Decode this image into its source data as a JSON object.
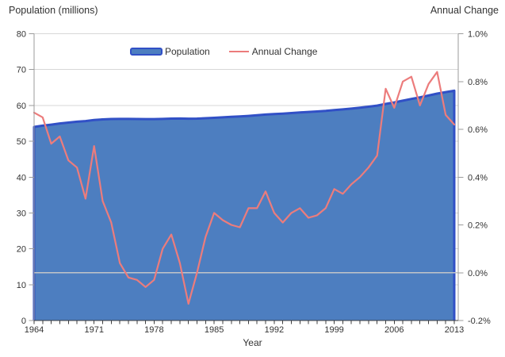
{
  "titles": {
    "left_axis_title": "Population (millions)",
    "right_axis_title": "Annual Change",
    "x_axis_title": "Year"
  },
  "colors": {
    "area_fill": "#4d7ec0",
    "area_border": "#3150c6",
    "line": "#ec7c7c",
    "gridline": "#d7d7d7",
    "zero_line": "#c2c5c8",
    "side_axis": "#9b9b9b",
    "bottom_axis": "#3f3f3f",
    "text": "#333333"
  },
  "chart_data": {
    "type": "combo",
    "x_label": "Year",
    "years": [
      1964,
      1965,
      1966,
      1967,
      1968,
      1969,
      1970,
      1971,
      1972,
      1973,
      1974,
      1975,
      1976,
      1977,
      1978,
      1979,
      1980,
      1981,
      1982,
      1983,
      1984,
      1985,
      1986,
      1987,
      1988,
      1989,
      1990,
      1991,
      1992,
      1993,
      1994,
      1995,
      1996,
      1997,
      1998,
      1999,
      2000,
      2001,
      2002,
      2003,
      2004,
      2005,
      2006,
      2007,
      2008,
      2009,
      2010,
      2011,
      2012,
      2013
    ],
    "x_tick_labels": [
      "1964",
      "1971",
      "1978",
      "1985",
      "1992",
      "1999",
      "2006",
      "2013"
    ],
    "left_axis": {
      "title": "Population (millions)",
      "ticks": [
        0,
        10,
        20,
        30,
        40,
        50,
        60,
        70,
        80
      ],
      "range": [
        0,
        80
      ]
    },
    "right_axis": {
      "title": "Annual Change",
      "ticks": [
        -0.2,
        0.0,
        0.2,
        0.4,
        0.6,
        0.8,
        1.0
      ],
      "tick_labels": [
        "-0.2%",
        "0.0%",
        "0.2%",
        "0.4%",
        "0.6%",
        "0.8%",
        "1.0%"
      ],
      "range": [
        -0.2,
        1.0
      ]
    },
    "legend_position": "top-center",
    "grid": "horizontal",
    "series": [
      {
        "name": "Population",
        "type": "area",
        "axis": "left",
        "values": [
          53.99,
          54.35,
          54.64,
          54.96,
          55.21,
          55.46,
          55.63,
          55.93,
          56.1,
          56.22,
          56.24,
          56.23,
          56.21,
          56.19,
          56.18,
          56.24,
          56.33,
          56.35,
          56.29,
          56.32,
          56.44,
          56.55,
          56.68,
          56.8,
          56.92,
          57.08,
          57.24,
          57.44,
          57.58,
          57.71,
          57.86,
          58.02,
          58.17,
          58.31,
          58.47,
          58.68,
          58.89,
          59.11,
          59.37,
          59.64,
          59.95,
          60.41,
          60.83,
          61.32,
          61.82,
          62.26,
          62.76,
          63.29,
          63.71,
          64.11
        ]
      },
      {
        "name": "Annual Change",
        "type": "line",
        "axis": "right",
        "values": [
          0.67,
          0.65,
          0.54,
          0.57,
          0.47,
          0.44,
          0.31,
          0.53,
          0.3,
          0.21,
          0.04,
          -0.02,
          -0.03,
          -0.06,
          -0.03,
          0.1,
          0.16,
          0.04,
          -0.13,
          0.0,
          0.15,
          0.25,
          0.22,
          0.2,
          0.19,
          0.27,
          0.27,
          0.34,
          0.25,
          0.21,
          0.25,
          0.27,
          0.23,
          0.24,
          0.27,
          0.35,
          0.33,
          0.37,
          0.4,
          0.44,
          0.49,
          0.77,
          0.69,
          0.8,
          0.82,
          0.7,
          0.79,
          0.84,
          0.66,
          0.62
        ]
      }
    ]
  }
}
